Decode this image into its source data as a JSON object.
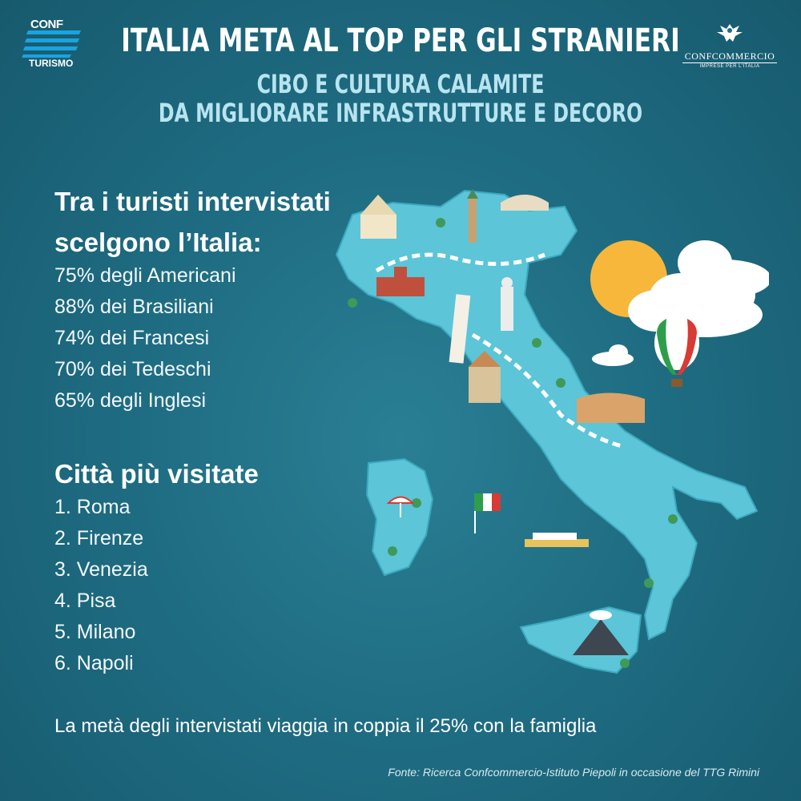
{
  "header": {
    "title": "ITALIA META AL TOP PER GLI STRANIERI",
    "subtitle_line1": "CIBO E CULTURA CALAMITE",
    "subtitle_line2": "DA MIGLIORARE INFRASTRUTTURE E DECORO"
  },
  "logos": {
    "left_top": "CONF",
    "left_bottom": "TURISMO",
    "right_name": "CONFCOMMERCIO",
    "right_tagline": "IMPRESE PER L'ITALIA"
  },
  "tourists": {
    "heading_line1": "Tra i turisti intervistati",
    "heading_line2": "scelgono l’Italia:",
    "items": [
      "75% degli Americani",
      "88% dei Brasiliani",
      "74% dei Francesi",
      "70% dei Tedeschi",
      "65% degli Inglesi"
    ]
  },
  "cities": {
    "heading": "Città più visitate",
    "items": [
      "1. Roma",
      "2. Firenze",
      "3. Venezia",
      "4. Pisa",
      "5. Milano",
      "6. Napoli"
    ]
  },
  "note": "La metà degli intervistati viaggia in coppia il 25% con la famiglia",
  "source": "Fonte: Ricerca Confcommercio-Istituto Piepoli in occasione del TTG Rimini",
  "colors": {
    "background": "#1f6d83",
    "land": "#5cc5d8",
    "land_dark": "#3ba9bf",
    "sun": "#f7b73a",
    "cloud": "#ffffff",
    "flag_green": "#2e9e4a",
    "flag_red": "#d83a34"
  },
  "illustration": "italy-map-illustration"
}
